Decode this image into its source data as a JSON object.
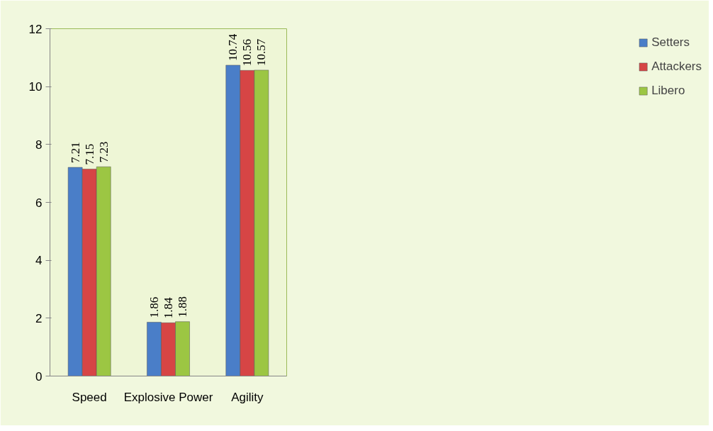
{
  "chart_data": {
    "type": "bar",
    "categories": [
      "Speed",
      "Explosive Power",
      "Agility"
    ],
    "series": [
      {
        "name": "Setters",
        "color": "#4a7ec8",
        "values": [
          7.21,
          1.86,
          10.74
        ]
      },
      {
        "name": "Attackers",
        "color": "#d64545",
        "values": [
          7.15,
          1.84,
          10.56
        ]
      },
      {
        "name": "Libero",
        "color": "#9cc643",
        "values": [
          7.23,
          1.88,
          10.57
        ]
      }
    ],
    "ylim": [
      0,
      12
    ],
    "yticks": [
      0,
      2,
      4,
      6,
      8,
      10,
      12
    ],
    "data_labels": true,
    "legend": "right",
    "grid": false
  }
}
